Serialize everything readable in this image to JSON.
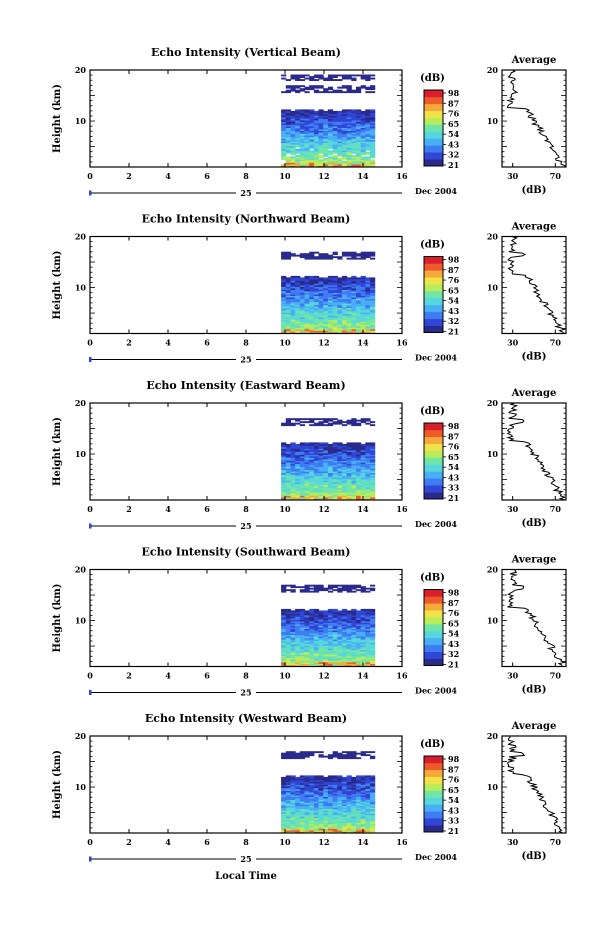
{
  "chart_data": [
    {
      "type": "heatmap",
      "title": "Echo Intensity (Vertical Beam)",
      "ylabel": "Height (km)",
      "xlim": [
        0,
        16
      ],
      "ylim": [
        1,
        20
      ],
      "x_ticks": [
        "0",
        "2",
        "4",
        "6",
        "8",
        "10",
        "12",
        "14",
        "16"
      ],
      "y_ticks": [
        "20",
        "10"
      ],
      "day_label": "25",
      "date_label": "Dec 2004",
      "data_time_range": [
        9.8,
        14.6
      ],
      "colorbar": {
        "label": "(dB)",
        "ticks": [
          "98",
          "87",
          "76",
          "65",
          "54",
          "43",
          "32",
          "21"
        ],
        "range": [
          21,
          98
        ]
      },
      "profile": {
        "title": "Average",
        "xlabel": "(dB)",
        "x_ticks": [
          "30",
          "70"
        ],
        "y_ticks": [
          "20",
          "10"
        ],
        "xlim": [
          20,
          80
        ]
      }
    },
    {
      "type": "heatmap",
      "title": "Echo Intensity (Northward Beam)",
      "ylabel": "Height (km)",
      "xlim": [
        0,
        16
      ],
      "ylim": [
        1,
        20
      ],
      "x_ticks": [
        "0",
        "2",
        "4",
        "6",
        "8",
        "10",
        "12",
        "14",
        "16"
      ],
      "y_ticks": [
        "20",
        "10"
      ],
      "day_label": "25",
      "date_label": "Dec 2004",
      "data_time_range": [
        9.8,
        14.6
      ],
      "colorbar": {
        "label": "(dB)",
        "ticks": [
          "98",
          "87",
          "76",
          "65",
          "54",
          "43",
          "32",
          "21"
        ],
        "range": [
          21,
          98
        ]
      },
      "profile": {
        "title": "Average",
        "xlabel": "(dB)",
        "x_ticks": [
          "30",
          "70"
        ],
        "y_ticks": [
          "20",
          "10"
        ],
        "xlim": [
          20,
          80
        ]
      }
    },
    {
      "type": "heatmap",
      "title": "Echo Intensity (Eastward Beam)",
      "ylabel": "Height (km)",
      "xlim": [
        0,
        16
      ],
      "ylim": [
        1,
        20
      ],
      "x_ticks": [
        "0",
        "2",
        "4",
        "6",
        "8",
        "10",
        "12",
        "14",
        "16"
      ],
      "y_ticks": [
        "20",
        "10"
      ],
      "day_label": "25",
      "date_label": "Dec 2004",
      "data_time_range": [
        9.8,
        14.6
      ],
      "colorbar": {
        "label": "(dB)",
        "ticks": [
          "98",
          "87",
          "76",
          "65",
          "54",
          "43",
          "33",
          "21"
        ],
        "range": [
          21,
          98
        ]
      },
      "profile": {
        "title": "Average",
        "xlabel": "(dB)",
        "x_ticks": [
          "30",
          "70"
        ],
        "y_ticks": [
          "20",
          "10"
        ],
        "xlim": [
          20,
          80
        ]
      }
    },
    {
      "type": "heatmap",
      "title": "Echo Intensity (Southward Beam)",
      "ylabel": "Height (km)",
      "xlim": [
        0,
        16
      ],
      "ylim": [
        1,
        20
      ],
      "x_ticks": [
        "0",
        "2",
        "4",
        "6",
        "8",
        "10",
        "12",
        "14",
        "16"
      ],
      "y_ticks": [
        "20",
        "10"
      ],
      "day_label": "25",
      "date_label": "Dec 2004",
      "data_time_range": [
        9.8,
        14.6
      ],
      "colorbar": {
        "label": "(dB)",
        "ticks": [
          "98",
          "87",
          "76",
          "65",
          "54",
          "43",
          "32",
          "21"
        ],
        "range": [
          21,
          98
        ]
      },
      "profile": {
        "title": "Average",
        "xlabel": "(dB)",
        "x_ticks": [
          "30",
          "70"
        ],
        "y_ticks": [
          "20",
          "10"
        ],
        "xlim": [
          20,
          80
        ]
      }
    },
    {
      "type": "heatmap",
      "title": "Echo Intensity (Westward Beam)",
      "ylabel": "Height (km)",
      "xlim": [
        0,
        16
      ],
      "ylim": [
        1,
        20
      ],
      "x_ticks": [
        "0",
        "2",
        "4",
        "6",
        "8",
        "10",
        "12",
        "14",
        "16"
      ],
      "y_ticks": [
        "20",
        "10"
      ],
      "day_label": "25",
      "date_label": "Dec 2004",
      "data_time_range": [
        9.8,
        14.6
      ],
      "colorbar": {
        "label": "(dB)",
        "ticks": [
          "98",
          "87",
          "76",
          "65",
          "54",
          "43",
          "33",
          "21"
        ],
        "range": [
          21,
          98
        ]
      },
      "profile": {
        "title": "Average",
        "xlabel": "(dB)",
        "x_ticks": [
          "30",
          "70"
        ],
        "y_ticks": [
          "20",
          "10"
        ],
        "xlim": [
          20,
          80
        ]
      }
    }
  ],
  "footer": {
    "xlabel": "Local Time"
  },
  "colormap": [
    "#2a2a8c",
    "#2f46d6",
    "#3f7cf2",
    "#48aef5",
    "#57d6dd",
    "#6fe6a8",
    "#b8ec5a",
    "#f2e24a",
    "#f4a93a",
    "#ef5a2c",
    "#d9202a"
  ]
}
